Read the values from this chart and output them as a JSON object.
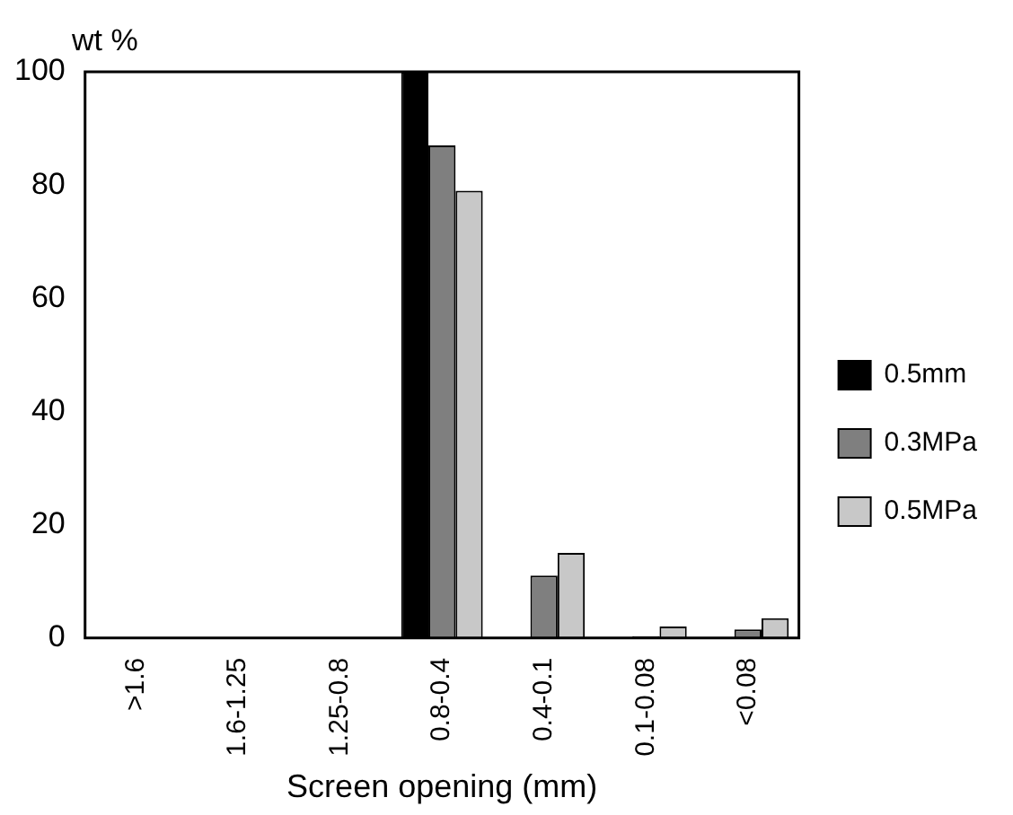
{
  "chart_data": {
    "type": "bar",
    "xlabel": "Screen opening (mm)",
    "ylabel": "wt %",
    "categories": [
      ">1.6",
      "1.6-1.25",
      "1.25-0.8",
      "0.8-0.4",
      "0.4-0.1",
      "0.1-0.08",
      "<0.08"
    ],
    "series": [
      {
        "name": "0.5mm",
        "color": "#000000",
        "values": [
          0,
          0,
          0,
          100,
          0,
          0,
          0
        ]
      },
      {
        "name": "0.3MPa",
        "color": "#7f7f7f",
        "values": [
          0,
          0,
          0,
          87,
          11,
          0.3,
          1.5
        ]
      },
      {
        "name": "0.5MPa",
        "color": "#c8c8c8",
        "values": [
          0,
          0,
          0,
          79,
          15,
          2,
          3.5
        ]
      }
    ],
    "ylim": [
      0,
      100
    ],
    "yticks": [
      0,
      20,
      40,
      60,
      80,
      100
    ],
    "grid": false,
    "legend": "right"
  }
}
